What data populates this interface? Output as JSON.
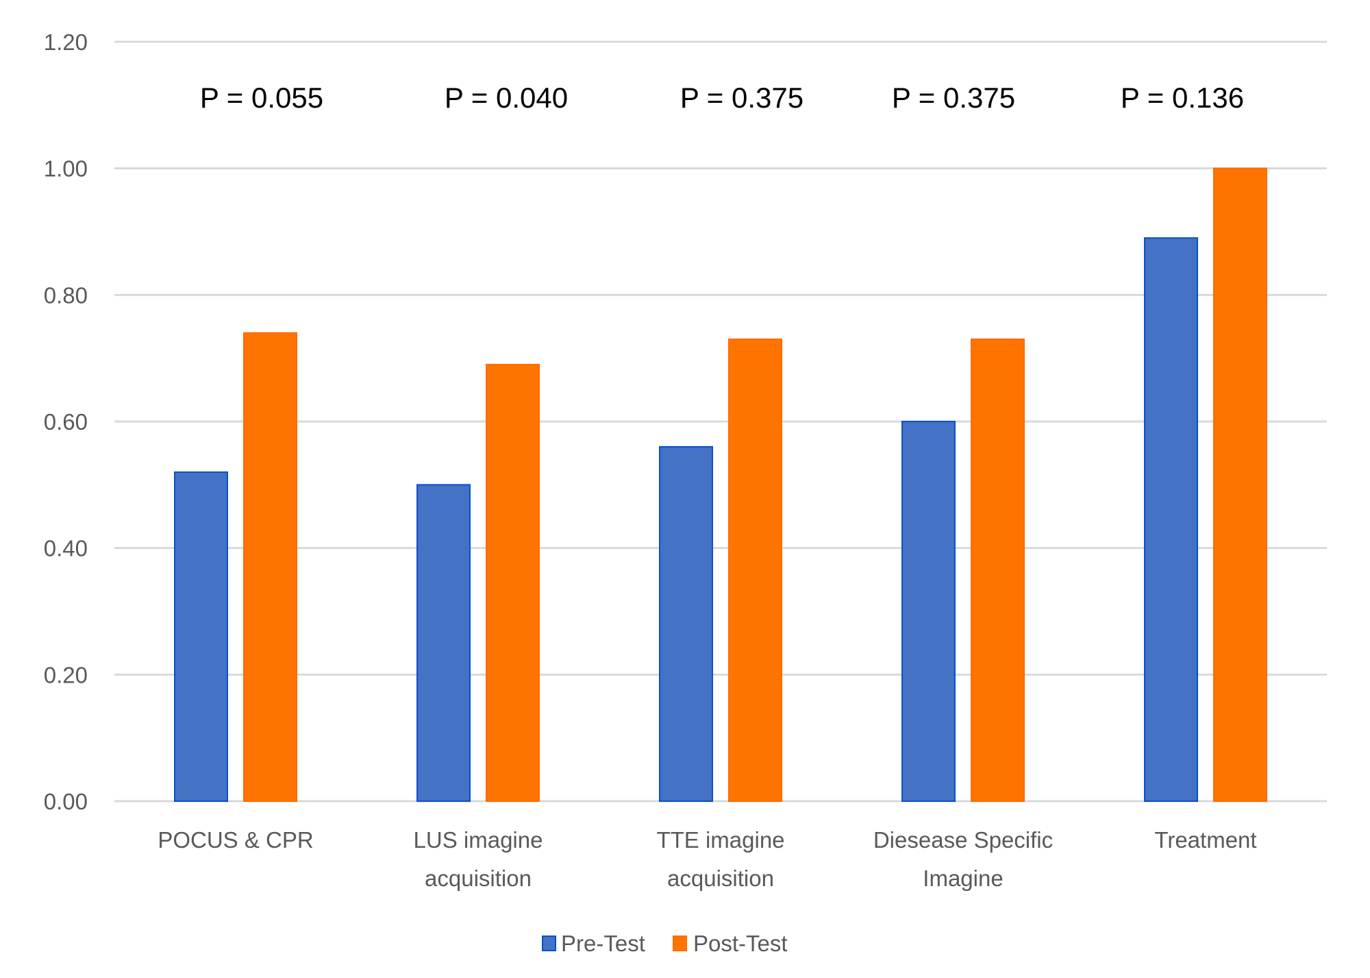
{
  "chart_data": {
    "type": "bar",
    "title": "",
    "xlabel": "",
    "ylabel": "",
    "ylim": [
      0,
      1.2
    ],
    "yticks": [
      "0.00",
      "0.20",
      "0.40",
      "0.60",
      "0.80",
      "1.00",
      "1.20"
    ],
    "ytick_values": [
      0,
      0.2,
      0.4,
      0.6,
      0.8,
      1.0,
      1.2
    ],
    "grid": true,
    "legend_position": "bottom",
    "categories": [
      [
        "POCUS & CPR"
      ],
      [
        "LUS imagine",
        "acquisition"
      ],
      [
        "TTE imagine",
        "acquisition"
      ],
      [
        "Diesease Specific",
        "Imagine"
      ],
      [
        "Treatment"
      ]
    ],
    "series": [
      {
        "name": "Pre-Test",
        "color": "#4472C4",
        "edge": "#0B4FCF",
        "values": [
          0.52,
          0.5,
          0.56,
          0.6,
          0.89
        ]
      },
      {
        "name": "Post-Test",
        "color": "#FF7400",
        "edge": "#FF6A00",
        "values": [
          0.74,
          0.69,
          0.73,
          0.73,
          1.0
        ]
      }
    ],
    "annotations": [
      "P = 0.055",
      "P = 0.040",
      "P = 0.375",
      "P = 0.375",
      "P = 0.136"
    ]
  }
}
